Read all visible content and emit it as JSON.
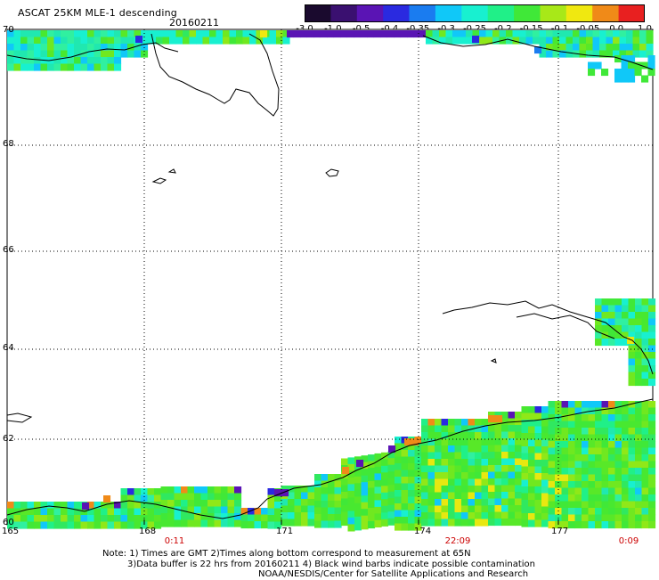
{
  "header": {
    "title": "ASCAT 25KM MLE-1 descending",
    "date": "20160211"
  },
  "colorbar": {
    "labels": [
      "-3.0",
      "-1.0",
      "-0.5",
      "-0.4",
      "-0.35",
      "-0.3",
      "-0.25",
      "-0.2",
      "-0.15",
      "-0.1",
      "-0.05",
      "0.0",
      "1.0"
    ],
    "colors": [
      "#1a0a2e",
      "#3a1070",
      "#5a14b4",
      "#2a2ae0",
      "#1a7cf0",
      "#10c8f8",
      "#18f0d0",
      "#20f088",
      "#40e838",
      "#a8e818",
      "#f0e810",
      "#f08a18",
      "#e82020"
    ]
  },
  "axes": {
    "lat_labels": [
      "70",
      "68",
      "66",
      "64",
      "62",
      "60"
    ],
    "lon_labels": [
      "165",
      "168",
      "171",
      "174",
      "177"
    ]
  },
  "times": [
    "0:11",
    "22:09",
    "0:09"
  ],
  "notes": {
    "line1": "Note: 1) Times are GMT 2)Times along bottom correspond to measurement at 65N",
    "line2": "3)Data buffer is 22 hrs from 20160211 4) Black wind barbs indicate possible contamination",
    "line3": "NOAA/NESDIS/Center for Satellite Applications and Research"
  }
}
